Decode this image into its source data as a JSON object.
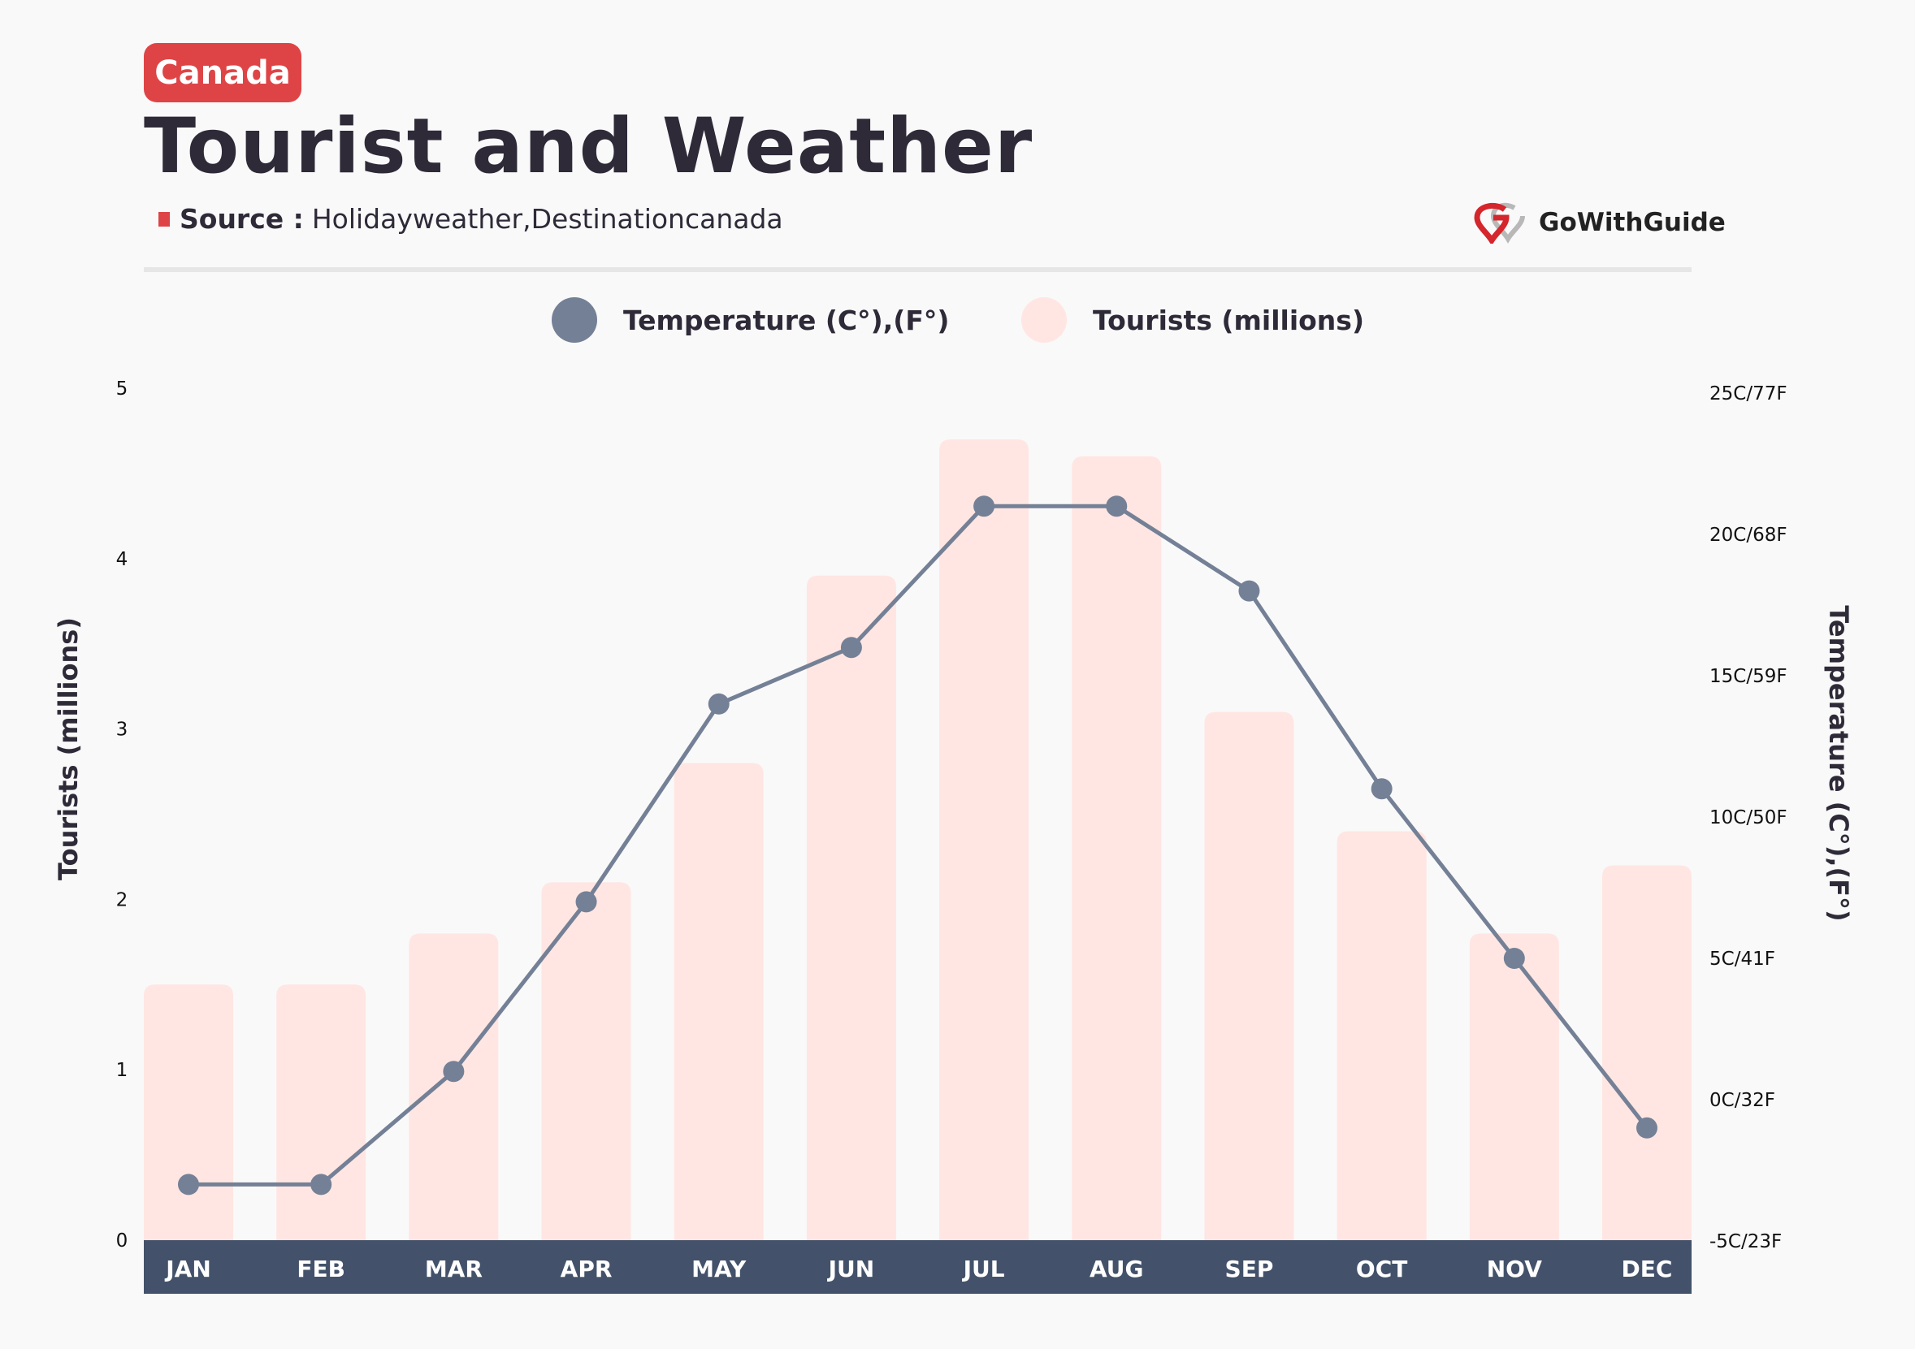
{
  "header": {
    "badge": "Canada",
    "title": "Tourist and Weather",
    "source_label": "Source :",
    "source_value": "Holidayweather,Destinationcanada",
    "logo_text": "GoWithGuide"
  },
  "colors": {
    "accent": "#de4446",
    "temperature": "#748096",
    "tourists": "#ffe6e2",
    "month_band": "#43526a"
  },
  "chart_data": {
    "type": "bar+line",
    "categories": [
      "JAN",
      "FEB",
      "MAR",
      "APR",
      "MAY",
      "JUN",
      "JUL",
      "AUG",
      "SEP",
      "OCT",
      "NOV",
      "DEC"
    ],
    "series": [
      {
        "name": "Temperature (C°),(F°)",
        "type": "line",
        "axis": "right",
        "unit": "C",
        "values": [
          -3,
          -3,
          1,
          7,
          14,
          16,
          21,
          21,
          18,
          11,
          5,
          -1
        ]
      },
      {
        "name": "Tourists (millions)",
        "type": "bar",
        "axis": "left",
        "values": [
          1.5,
          1.5,
          1.8,
          2.1,
          2.8,
          3.9,
          4.7,
          4.6,
          3.1,
          2.4,
          1.8,
          2.2
        ]
      }
    ],
    "ylabel": "Tourists (millions)",
    "ylim": [
      0,
      5
    ],
    "yticks": [
      "0",
      "1",
      "2",
      "3",
      "4",
      "5"
    ],
    "y2label": "Temperature (C°),(F°)",
    "y2lim": [
      -5,
      25
    ],
    "y2ticks": [
      "-5C/23F",
      "0C/32F",
      "5C/41F",
      "10C/50F",
      "15C/59F",
      "20C/68F",
      "25C/77F"
    ],
    "legend": "top-center",
    "grid": false
  }
}
